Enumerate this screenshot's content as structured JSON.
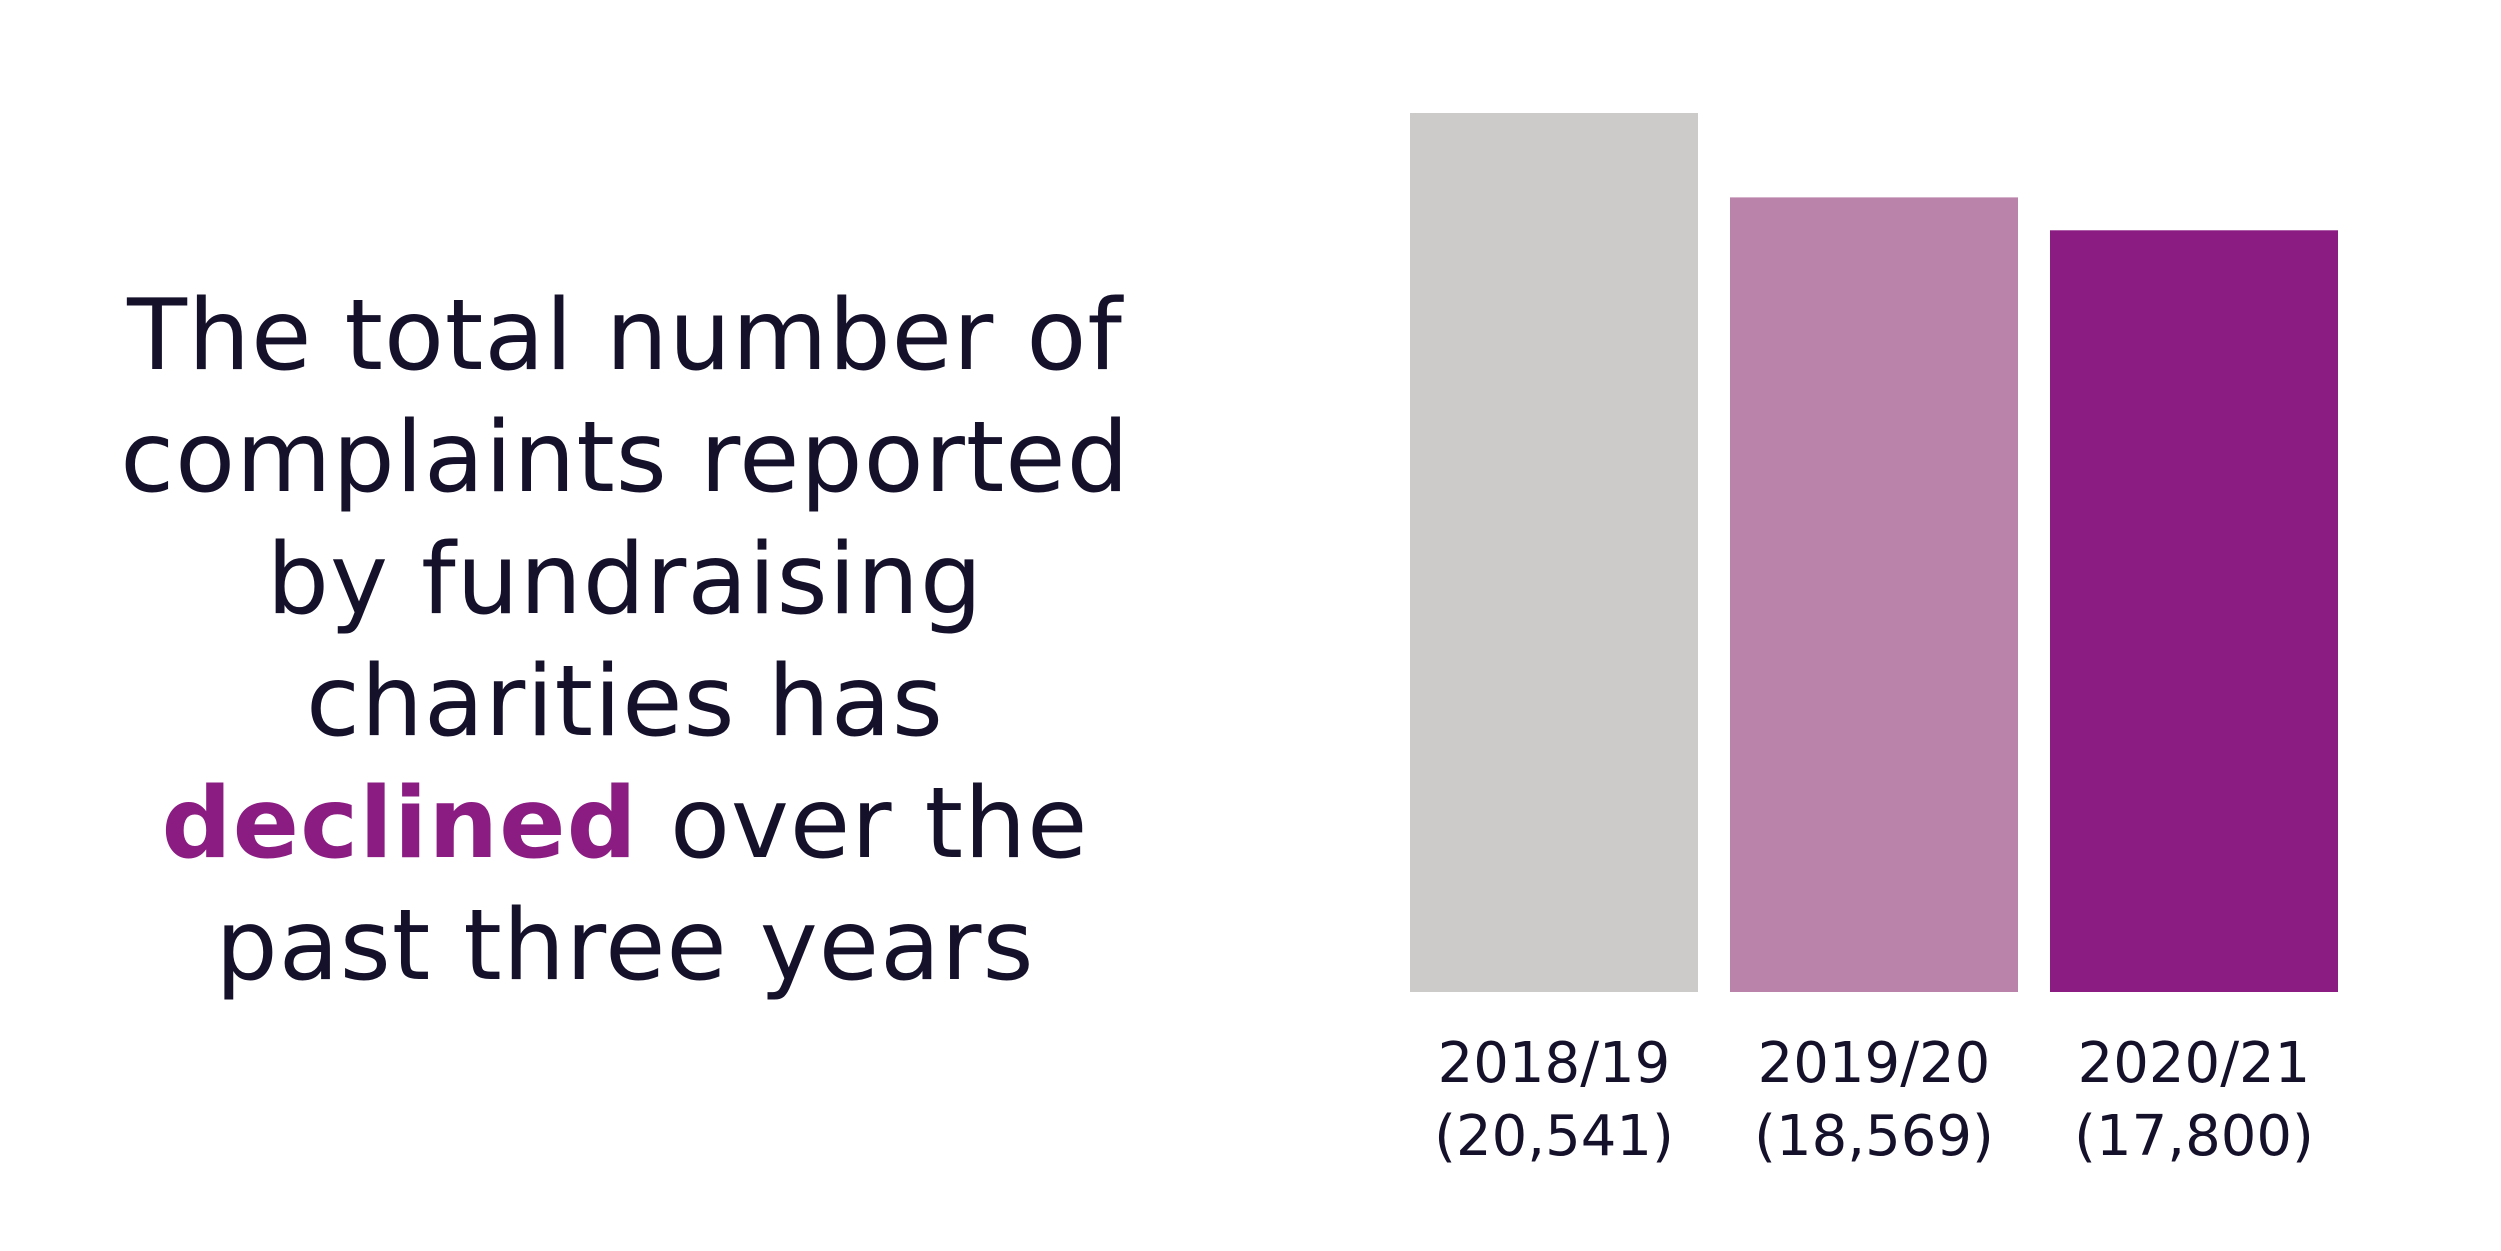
{
  "headline": {
    "line1": "The total number of",
    "line2": "complaints reported",
    "line3": "by fundraising",
    "line4": "charities has",
    "line5_emphasis": "declined",
    "line5_rest": " over the",
    "line6": "past three years"
  },
  "colors": {
    "text": "#15112b",
    "emphasis": "#8b1c82"
  },
  "chart_data": {
    "type": "bar",
    "title": "",
    "xlabel": "",
    "ylabel": "",
    "categories": [
      "2018/19",
      "2019/20",
      "2020/21"
    ],
    "value_labels": [
      "(20,541)",
      "(18,569)",
      "(17,800)"
    ],
    "values": [
      20541,
      18569,
      17800
    ],
    "colors": [
      "#cccbc9",
      "#b983aa",
      "#8b1c82"
    ],
    "ylim": [
      0,
      20541
    ],
    "grid": false,
    "legend": "none"
  }
}
